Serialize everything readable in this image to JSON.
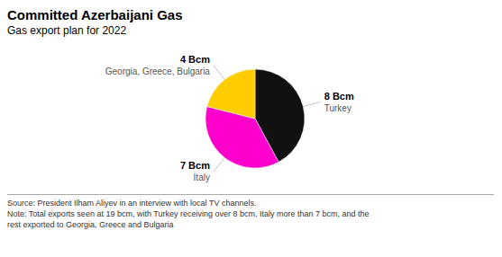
{
  "chart_data": {
    "type": "pie",
    "title": "Committed Azerbaijani Gas",
    "subtitle": "Gas export plan for 2022",
    "categories": [
      "Turkey",
      "Italy",
      "Georgia, Greece, Bulgaria"
    ],
    "values": [
      8,
      7,
      4
    ],
    "value_labels": [
      "8 Bcm",
      "7 Bcm",
      "4 Bcm"
    ],
    "colors": [
      "#111111",
      "#FF00CC",
      "#FFCC00"
    ],
    "data_labels": true,
    "annotations": [
      "Source: President Ilham Aliyev in an interview with local TV channels.",
      "Note: Total exports seen at 19 bcm, with Turkey receiving over 8 bcm, Italy more than 7 bcm, and the",
      "rest exported to Georgia, Greece and Bulgaria"
    ]
  }
}
